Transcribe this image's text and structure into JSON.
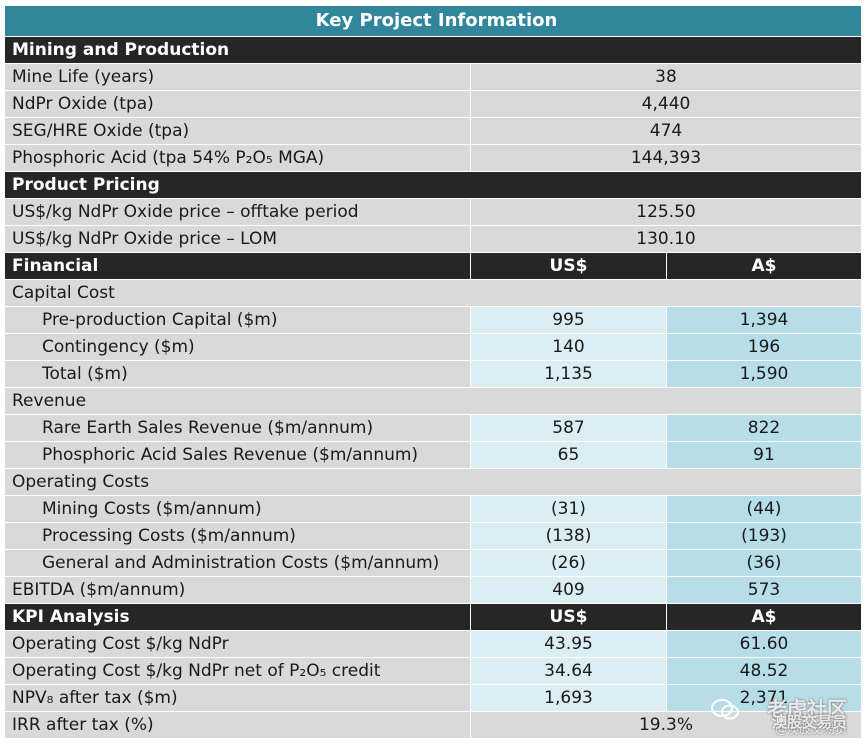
{
  "title": "Key Project Information",
  "sections": {
    "mining": {
      "header": "Mining and Production",
      "rows": [
        {
          "label": "Mine Life (years)",
          "value": "38"
        },
        {
          "label": "NdPr Oxide (tpa)",
          "value": "4,440"
        },
        {
          "label": "SEG/HRE Oxide (tpa)",
          "value": "474"
        },
        {
          "label": "Phosphoric Acid (tpa 54% P₂O₅ MGA)",
          "value": "144,393"
        }
      ]
    },
    "pricing": {
      "header": "Product Pricing",
      "rows": [
        {
          "label": "US$/kg NdPr Oxide price – offtake period",
          "value": "125.50"
        },
        {
          "label": "US$/kg NdPr Oxide price – LOM",
          "value": "130.10"
        }
      ]
    },
    "financial": {
      "header": "Financial",
      "col1": "US$",
      "col2": "A$",
      "groups": [
        {
          "label": "Capital Cost",
          "rows": [
            {
              "label": "Pre-production Capital ($m)",
              "usd": "995",
              "aud": "1,394"
            },
            {
              "label": "Contingency ($m)",
              "usd": "140",
              "aud": "196"
            },
            {
              "label": "Total ($m)",
              "usd": "1,135",
              "aud": "1,590"
            }
          ]
        },
        {
          "label": "Revenue",
          "rows": [
            {
              "label": "Rare Earth Sales Revenue ($m/annum)",
              "usd": "587",
              "aud": "822"
            },
            {
              "label": "Phosphoric Acid Sales Revenue ($m/annum)",
              "usd": "65",
              "aud": "91"
            }
          ]
        },
        {
          "label": "Operating Costs",
          "rows": [
            {
              "label": "Mining Costs ($m/annum)",
              "usd": "(31)",
              "aud": "(44)"
            },
            {
              "label": "Processing Costs ($m/annum)",
              "usd": "(138)",
              "aud": "(193)"
            },
            {
              "label": "General and Administration Costs ($m/annum)",
              "usd": "(26)",
              "aud": "(36)"
            }
          ]
        }
      ],
      "ebitda": {
        "label": "EBITDA ($m/annum)",
        "usd": "409",
        "aud": "573"
      }
    },
    "kpi": {
      "header": "KPI Analysis",
      "col1": "US$",
      "col2": "A$",
      "rows": [
        {
          "label": "Operating Cost $/kg NdPr",
          "usd": "43.95",
          "aud": "61.60"
        },
        {
          "label": "Operating Cost $/kg NdPr net of P₂O₅ credit",
          "usd": "34.64",
          "aud": "48.52"
        },
        {
          "label": "NPV₈ after tax ($m)",
          "usd": "1,693",
          "aud": "2,371"
        }
      ],
      "irr": {
        "label": "IRR after tax (%)",
        "value": "19.3%"
      }
    }
  },
  "watermark": {
    "line1": "老虎社区",
    "line2": "澳股交易员",
    "line3": "@澳股交易员"
  },
  "colors": {
    "title_bg": "#31869b",
    "header_bg": "#262626",
    "label_bg": "#d9d9d9",
    "usd_bg": "#dbeef4",
    "aud_bg": "#b7dde8"
  }
}
